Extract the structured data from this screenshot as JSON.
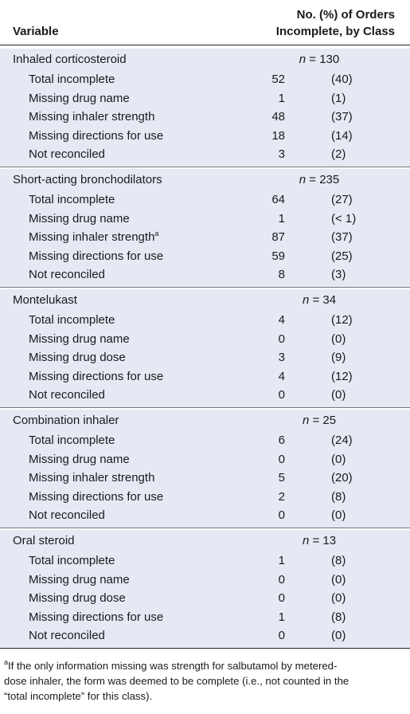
{
  "header": {
    "variable": "Variable",
    "column_line1": "No. (%) of Orders",
    "column_line2": "Incomplete, by Class"
  },
  "sections": [
    {
      "class": "Inhaled corticosteroid",
      "n_label": "n",
      "n_value": " = 130",
      "rows": [
        {
          "label": "Total incomplete",
          "count": "52",
          "pct": "(40)"
        },
        {
          "label": "Missing drug name",
          "count": "1",
          "pct": "(1)"
        },
        {
          "label": "Missing inhaler strength",
          "count": "48",
          "pct": "(37)"
        },
        {
          "label": "Missing directions for use",
          "count": "18",
          "pct": "(14)"
        },
        {
          "label": "Not reconciled",
          "count": "3",
          "pct": "(2)"
        }
      ]
    },
    {
      "class": "Short-acting bronchodilators",
      "n_label": "n",
      "n_value": " = 235",
      "rows": [
        {
          "label": "Total incomplete",
          "count": "64",
          "pct": "(27)"
        },
        {
          "label": "Missing drug name",
          "count": "1",
          "pct": "(< 1)"
        },
        {
          "label": "Missing inhaler strength",
          "sup": "a",
          "count": "87",
          "pct": "(37)"
        },
        {
          "label": "Missing directions for use",
          "count": "59",
          "pct": "(25)"
        },
        {
          "label": "Not reconciled",
          "count": "8",
          "pct": "(3)"
        }
      ]
    },
    {
      "class": "Montelukast",
      "n_label": "n",
      "n_value": " = 34",
      "rows": [
        {
          "label": "Total incomplete",
          "count": "4",
          "pct": "(12)"
        },
        {
          "label": "Missing drug name",
          "count": "0",
          "pct": "(0)"
        },
        {
          "label": "Missing drug dose",
          "count": "3",
          "pct": "(9)"
        },
        {
          "label": "Missing directions for use",
          "count": "4",
          "pct": "(12)"
        },
        {
          "label": "Not reconciled",
          "count": "0",
          "pct": "(0)"
        }
      ]
    },
    {
      "class": "Combination inhaler",
      "n_label": "n",
      "n_value": " = 25",
      "rows": [
        {
          "label": "Total incomplete",
          "count": "6",
          "pct": "(24)"
        },
        {
          "label": "Missing drug name",
          "count": "0",
          "pct": "(0)"
        },
        {
          "label": "Missing inhaler strength",
          "count": "5",
          "pct": "(20)"
        },
        {
          "label": "Missing directions for use",
          "count": "2",
          "pct": "(8)"
        },
        {
          "label": "Not reconciled",
          "count": "0",
          "pct": "(0)"
        }
      ]
    },
    {
      "class": "Oral steroid",
      "n_label": "n",
      "n_value": " = 13",
      "rows": [
        {
          "label": "Total incomplete",
          "count": "1",
          "pct": "(8)"
        },
        {
          "label": "Missing drug name",
          "count": "0",
          "pct": "(0)"
        },
        {
          "label": "Missing drug dose",
          "count": "0",
          "pct": "(0)"
        },
        {
          "label": "Missing directions for use",
          "count": "1",
          "pct": "(8)"
        },
        {
          "label": "Not reconciled",
          "count": "0",
          "pct": "(0)"
        }
      ]
    }
  ],
  "footnote": {
    "marker": "a",
    "line1": "If the only information missing was strength for salbutamol by metered-",
    "line2": "dose inhaler, the form was deemed to be complete (i.e., not counted in the",
    "line3": "“total incomplete” for this class)."
  }
}
